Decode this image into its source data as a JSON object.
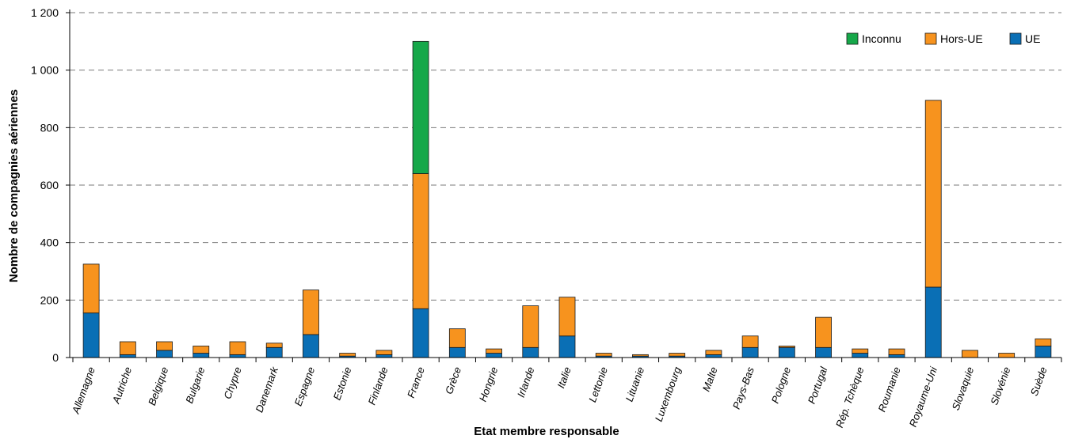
{
  "chart_data": {
    "type": "bar",
    "stacked": true,
    "title": "",
    "xlabel": "Etat membre responsable",
    "ylabel": "Nombre de compagnies aériennes",
    "ylim": [
      0,
      1200
    ],
    "yticks": [
      0,
      200,
      400,
      600,
      800,
      1000,
      1200
    ],
    "ytick_labels": [
      "0",
      "200",
      "400",
      "600",
      "800",
      "1 000",
      "1 200"
    ],
    "grid": "horizontal dashed",
    "legend_position": "top-right",
    "categories": [
      "Allemagne",
      "Autriche",
      "Belgique",
      "Bulgarie",
      "Chypre",
      "Danemark",
      "Espagne",
      "Estonie",
      "Finlande",
      "France",
      "Grèce",
      "Hongrie",
      "Irlande",
      "Italie",
      "Lettonie",
      "Lituanie",
      "Luxembourg",
      "Malte",
      "Pays-Bas",
      "Pologne",
      "Portugal",
      "Rép. Tchèque",
      "Roumanie",
      "Royaume-Uni",
      "Slovaquie",
      "Slovénie",
      "Suède"
    ],
    "series": [
      {
        "name": "UE",
        "color": "#0a6fb5",
        "values": [
          155,
          10,
          25,
          15,
          10,
          35,
          80,
          5,
          10,
          170,
          35,
          15,
          35,
          75,
          5,
          5,
          5,
          10,
          35,
          35,
          35,
          15,
          10,
          245,
          0,
          0,
          40
        ]
      },
      {
        "name": "Hors-UE",
        "color": "#f7931e",
        "values": [
          170,
          45,
          30,
          25,
          45,
          15,
          155,
          10,
          15,
          470,
          65,
          15,
          145,
          135,
          10,
          5,
          10,
          15,
          40,
          5,
          105,
          15,
          20,
          650,
          25,
          15,
          25
        ]
      },
      {
        "name": "Inconnu",
        "color": "#16a84a",
        "values": [
          0,
          0,
          0,
          0,
          0,
          0,
          0,
          0,
          0,
          460,
          0,
          0,
          0,
          0,
          0,
          0,
          0,
          0,
          0,
          0,
          0,
          0,
          0,
          0,
          0,
          0,
          0
        ]
      }
    ],
    "legend_order": [
      "Inconnu",
      "Hors-UE",
      "UE"
    ]
  }
}
